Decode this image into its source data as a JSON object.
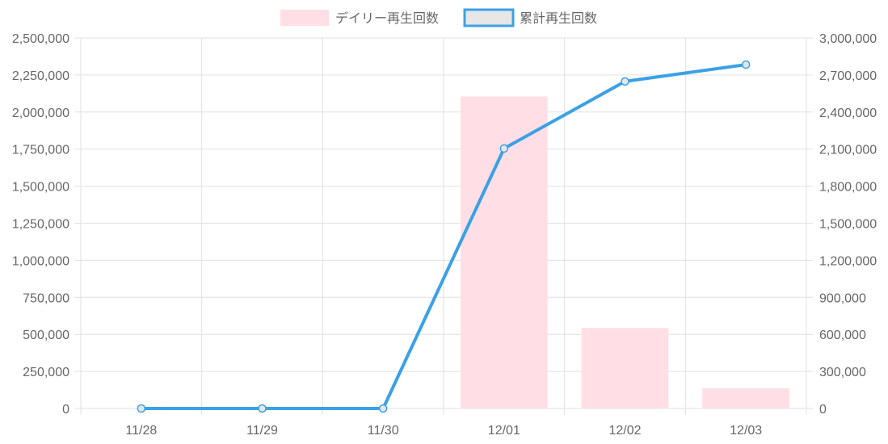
{
  "chart_data": {
    "type": "bar+line",
    "categories": [
      "11/28",
      "11/29",
      "11/30",
      "12/01",
      "12/02",
      "12/03"
    ],
    "series": [
      {
        "name": "デイリー再生回数",
        "type": "bar",
        "axis": "left",
        "values": [
          0,
          0,
          0,
          2105000,
          543000,
          136000
        ]
      },
      {
        "name": "累計再生回数",
        "type": "line",
        "axis": "right",
        "values": [
          0,
          0,
          0,
          2105000,
          2648000,
          2784000
        ]
      }
    ],
    "y_left": {
      "min": 0,
      "max": 2500000,
      "ticks": [
        "0",
        "250,000",
        "500,000",
        "750,000",
        "1,000,000",
        "1,250,000",
        "1,500,000",
        "1,750,000",
        "2,000,000",
        "2,250,000",
        "2,500,000"
      ]
    },
    "y_right": {
      "min": 0,
      "max": 3000000,
      "ticks": [
        "0",
        "300,000",
        "600,000",
        "900,000",
        "1,200,000",
        "1,500,000",
        "1,800,000",
        "2,100,000",
        "2,400,000",
        "2,700,000",
        "3,000,000"
      ]
    },
    "grid": true,
    "legend_position": "top",
    "colors": {
      "bar_fill": "#ffdfe5",
      "line": "#3ba1e5",
      "line_legend_fill": "#e6e6e6",
      "grid": "#e0e0e0",
      "axis": "#bfbfbf",
      "text": "#666666"
    }
  }
}
